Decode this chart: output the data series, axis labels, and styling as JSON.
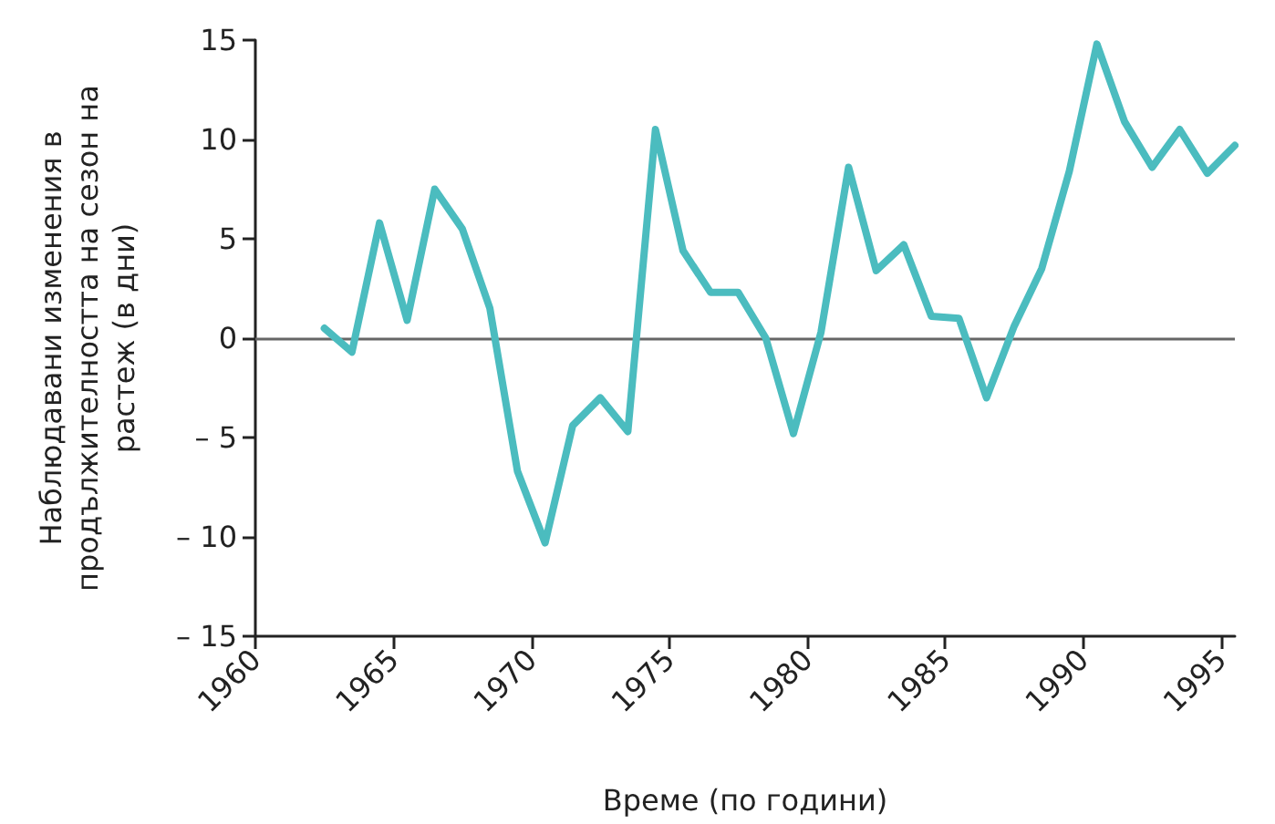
{
  "chart_data": {
    "type": "line",
    "xlabel": "Време (по години)",
    "ylabel": "Наблюдавани изменения в\nпродължителността на сезон на\nрастеж (в дни)",
    "x": [
      1962.5,
      1963.5,
      1964.5,
      1965.5,
      1966.5,
      1967.5,
      1968.5,
      1969.5,
      1970.5,
      1971.5,
      1972.5,
      1973.5,
      1974.5,
      1975.5,
      1976.5,
      1977.5,
      1978.5,
      1979.5,
      1980.5,
      1981.5,
      1982.5,
      1983.5,
      1984.5,
      1985.5,
      1986.5,
      1987.5,
      1988.5,
      1989.5,
      1990.5,
      1991.5,
      1992.5,
      1993.5,
      1994.5,
      1995.5
    ],
    "series": [
      {
        "color": "#4bbcbf",
        "values": [
          0.5,
          -0.7,
          5.8,
          0.9,
          7.5,
          5.5,
          1.5,
          -6.7,
          -10.3,
          -4.4,
          -3.0,
          -4.7,
          10.5,
          4.4,
          2.3,
          2.3,
          0,
          -4.8,
          0.3,
          8.6,
          3.4,
          4.7,
          1.1,
          1.0,
          -3.0,
          0.6,
          3.5,
          8.4,
          14.8,
          10.9,
          8.6,
          10.5,
          8.3,
          9.7
        ]
      }
    ],
    "xlim": [
      1960,
      1995.5
    ],
    "xticks": [
      1960,
      1965,
      1970,
      1975,
      1980,
      1985,
      1990,
      1995
    ],
    "ylim": [
      -15,
      15
    ],
    "yticks": [
      {
        "value": -15,
        "label": "– 15"
      },
      {
        "value": -10,
        "label": "– 10"
      },
      {
        "value": -5,
        "label": "– 5"
      },
      0,
      5,
      10,
      15
    ],
    "ref_lines": [
      {
        "axis": "y",
        "value": 0,
        "color": "#666666"
      }
    ],
    "grid": false,
    "marker": "none",
    "line_style": "solid"
  }
}
